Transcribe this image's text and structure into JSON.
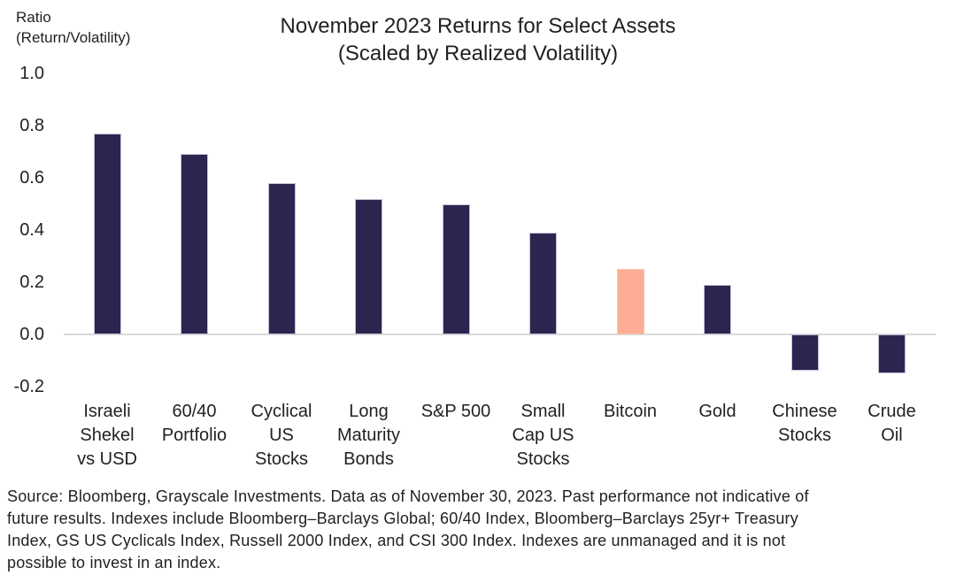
{
  "header": {
    "y_axis_title_line1": "Ratio",
    "y_axis_title_line2": "(Return/Volatility)",
    "title_line1": "November 2023 Returns for Select Assets",
    "title_line2": "(Scaled by Realized Volatility)"
  },
  "chart_data": {
    "type": "bar",
    "title": "November 2023 Returns for Select Assets (Scaled by Realized Volatility)",
    "ylabel": "Ratio (Return/Volatility)",
    "xlabel": "",
    "categories": [
      "Israeli Shekel vs USD",
      "60/40 Portfolio",
      "Cyclical US Stocks",
      "Long Maturity Bonds",
      "S&P 500",
      "Small Cap US Stocks",
      "Bitcoin",
      "Gold",
      "Chinese Stocks",
      "Crude Oil"
    ],
    "category_lines": [
      [
        "Israeli",
        "Shekel",
        "vs USD"
      ],
      [
        "60/40",
        "Portfolio"
      ],
      [
        "Cyclical",
        "US",
        "Stocks"
      ],
      [
        "Long",
        "Maturity",
        "Bonds"
      ],
      [
        "S&P 500"
      ],
      [
        "Small",
        "Cap US",
        "Stocks"
      ],
      [
        "Bitcoin"
      ],
      [
        "Gold"
      ],
      [
        "Chinese",
        "Stocks"
      ],
      [
        "Crude",
        "Oil"
      ]
    ],
    "values": [
      0.77,
      0.69,
      0.58,
      0.52,
      0.5,
      0.39,
      0.25,
      0.19,
      -0.14,
      -0.15
    ],
    "highlight_index": 6,
    "highlight_category": "Bitcoin",
    "colors": {
      "default": "#2D2450",
      "default_border": "#C5BED4",
      "highlight": "#FCAD94",
      "highlight_border": "#FAC3AF",
      "axis_line": "#DADADA",
      "text": "#221F20"
    },
    "yticks": [
      1.0,
      0.8,
      0.6,
      0.4,
      0.2,
      0.0,
      -0.2
    ],
    "ytick_labels": [
      "1.0",
      "0.8",
      "0.6",
      "0.4",
      "0.2",
      "0.0",
      "-0.2"
    ],
    "ylim": [
      -0.2,
      1.0
    ],
    "grid": false,
    "legend": null
  },
  "footer": {
    "lines": [
      "Source: Bloomberg, Grayscale Investments. Data as of November 30, 2023. Past performance not indicative of",
      "future results. Indexes include Bloomberg–Barclays Global; 60/40 Index, Bloomberg–Barclays 25yr+ Treasury",
      "Index, GS US Cyclicals Index, Russell 2000 Index, and CSI 300 Index. Indexes are unmanaged and it is not",
      "possible to invest in an index."
    ],
    "full_text": "Source: Bloomberg, Grayscale Investments. Data as of November 30, 2023. Past performance not indicative of future results. Indexes include Bloomberg–Barclays Global; 60/40 Index, Bloomberg–Barclays 25yr+ Treasury Index, GS US Cyclicals Index, Russell 2000 Index, and CSI 300 Index. Indexes are unmanaged and it is not possible to invest in an index."
  }
}
